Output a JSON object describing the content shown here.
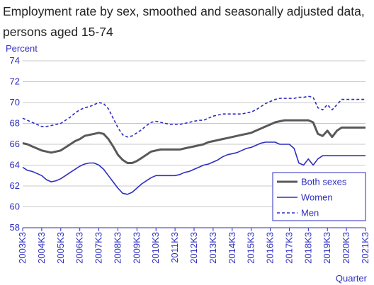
{
  "chart_data": {
    "type": "line",
    "title": "Employment rate by sex, smoothed and seasonally adjusted data, persons aged 15-74",
    "ylabel": "Percent",
    "xlabel": "Quarter",
    "ylim": [
      58,
      74
    ],
    "yticks": [
      58,
      60,
      62,
      64,
      66,
      68,
      70,
      72,
      74
    ],
    "xticks": [
      "2003K3",
      "2004K3",
      "2005K3",
      "2006K3",
      "2007K3",
      "2008K3",
      "2009K3",
      "2010K3",
      "2011K3",
      "2012K3",
      "2013K3",
      "2014K3",
      "2015K3",
      "2016K3",
      "2017K3",
      "2018K3",
      "2019K3",
      "2020K3",
      "2021K3"
    ],
    "grid": "horizontal",
    "legend_position": "bottom-right",
    "x": [
      2003.5,
      2003.75,
      2004.0,
      2004.25,
      2004.5,
      2004.75,
      2005.0,
      2005.25,
      2005.5,
      2005.75,
      2006.0,
      2006.25,
      2006.5,
      2006.75,
      2007.0,
      2007.25,
      2007.5,
      2007.75,
      2008.0,
      2008.25,
      2008.5,
      2008.75,
      2009.0,
      2009.25,
      2009.5,
      2009.75,
      2010.0,
      2010.25,
      2010.5,
      2010.75,
      2011.0,
      2011.25,
      2011.5,
      2011.75,
      2012.0,
      2012.25,
      2012.5,
      2012.75,
      2013.0,
      2013.25,
      2013.5,
      2013.75,
      2014.0,
      2014.25,
      2014.5,
      2014.75,
      2015.0,
      2015.25,
      2015.5,
      2015.75,
      2016.0,
      2016.25,
      2016.5,
      2016.75,
      2017.0,
      2017.25,
      2017.5,
      2017.75,
      2018.0,
      2018.25,
      2018.5,
      2018.75,
      2019.0,
      2019.25,
      2019.5,
      2019.75,
      2020.0,
      2020.25,
      2020.5,
      2020.75,
      2021.0,
      2021.25,
      2021.5
    ],
    "series": [
      {
        "name": "Both sexes",
        "color": "#595959",
        "style": "solid",
        "values": [
          66.1,
          66.0,
          65.8,
          65.6,
          65.4,
          65.3,
          65.2,
          65.3,
          65.4,
          65.7,
          66.0,
          66.3,
          66.5,
          66.8,
          66.9,
          67.0,
          67.1,
          67.0,
          66.5,
          65.8,
          65.0,
          64.5,
          64.2,
          64.2,
          64.4,
          64.7,
          65.0,
          65.3,
          65.4,
          65.5,
          65.5,
          65.5,
          65.5,
          65.5,
          65.6,
          65.7,
          65.8,
          65.9,
          66.0,
          66.2,
          66.3,
          66.4,
          66.5,
          66.6,
          66.7,
          66.8,
          66.9,
          67.0,
          67.1,
          67.3,
          67.5,
          67.7,
          67.9,
          68.1,
          68.2,
          68.3,
          68.3,
          68.3,
          68.3,
          68.3,
          68.3,
          68.1,
          67.0,
          66.8,
          67.3,
          66.7,
          67.3,
          67.6,
          67.6,
          67.6,
          67.6,
          67.6,
          67.6
        ]
      },
      {
        "name": "Women",
        "color": "#2e2ec0",
        "style": "solid",
        "values": [
          63.8,
          63.5,
          63.4,
          63.2,
          63.0,
          62.6,
          62.4,
          62.5,
          62.7,
          63.0,
          63.3,
          63.6,
          63.9,
          64.1,
          64.2,
          64.2,
          64.0,
          63.6,
          63.0,
          62.4,
          61.8,
          61.3,
          61.2,
          61.4,
          61.8,
          62.2,
          62.5,
          62.8,
          63.0,
          63.0,
          63.0,
          63.0,
          63.0,
          63.1,
          63.3,
          63.4,
          63.6,
          63.8,
          64.0,
          64.1,
          64.3,
          64.5,
          64.8,
          65.0,
          65.1,
          65.2,
          65.4,
          65.6,
          65.7,
          65.9,
          66.1,
          66.2,
          66.2,
          66.2,
          66.0,
          66.0,
          66.0,
          65.6,
          64.2,
          64.0,
          64.6,
          64.0,
          64.6,
          64.9,
          64.9,
          64.9,
          64.9,
          64.9,
          64.9,
          64.9,
          64.9,
          64.9,
          64.9
        ]
      },
      {
        "name": "Men",
        "color": "#2e2ec0",
        "style": "dashed",
        "values": [
          68.5,
          68.3,
          68.1,
          67.9,
          67.7,
          67.7,
          67.8,
          67.9,
          68.0,
          68.3,
          68.6,
          69.0,
          69.3,
          69.5,
          69.6,
          69.8,
          70.0,
          69.9,
          69.4,
          68.5,
          67.6,
          66.9,
          66.7,
          66.8,
          67.1,
          67.4,
          67.8,
          68.1,
          68.2,
          68.1,
          68.0,
          67.9,
          67.9,
          67.9,
          68.0,
          68.1,
          68.2,
          68.3,
          68.3,
          68.5,
          68.7,
          68.8,
          68.9,
          68.9,
          68.9,
          68.9,
          68.9,
          69.0,
          69.1,
          69.3,
          69.6,
          69.9,
          70.1,
          70.3,
          70.4,
          70.4,
          70.4,
          70.4,
          70.5,
          70.5,
          70.6,
          70.5,
          69.5,
          69.3,
          69.8,
          69.3,
          69.8,
          70.3,
          70.3,
          70.3,
          70.3,
          70.3,
          70.3
        ]
      }
    ]
  }
}
